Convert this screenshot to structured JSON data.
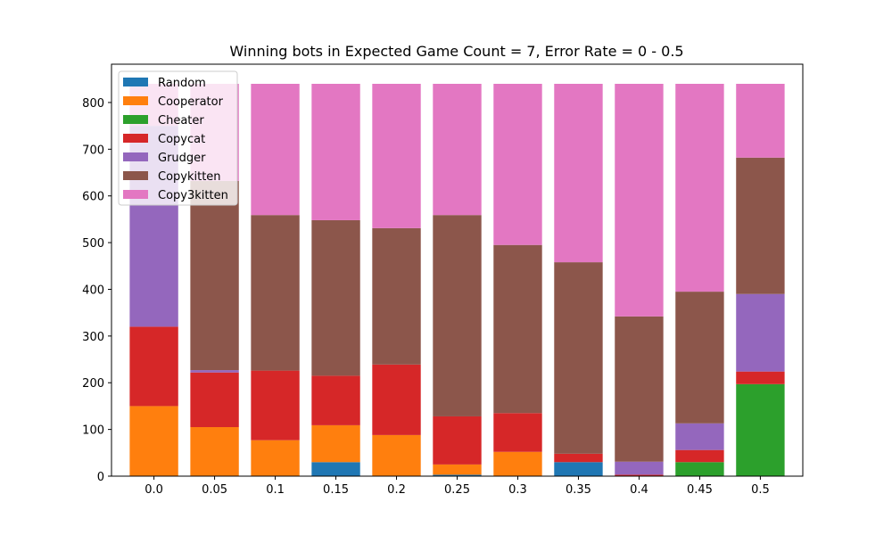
{
  "chart_data": {
    "type": "bar",
    "stacked": true,
    "title": "Winning bots in Expected Game Count = 7, Error Rate = 0 - 0.5",
    "xlabel": "",
    "ylabel": "",
    "categories": [
      "0.0",
      "0.05",
      "0.1",
      "0.15",
      "0.2",
      "0.25",
      "0.3",
      "0.35",
      "0.4",
      "0.45",
      "0.5"
    ],
    "ylim": [
      0,
      840
    ],
    "yticks": [
      0,
      100,
      200,
      300,
      400,
      500,
      600,
      700,
      800
    ],
    "grid": false,
    "legend_position": "upper-left",
    "series": [
      {
        "name": "Random",
        "color": "#1f77b4",
        "values": [
          0,
          0,
          0,
          30,
          0,
          3,
          0,
          30,
          0,
          0,
          0
        ]
      },
      {
        "name": "Cooperator",
        "color": "#ff7f0e",
        "values": [
          150,
          105,
          77,
          79,
          88,
          22,
          52,
          0,
          0,
          0,
          0
        ]
      },
      {
        "name": "Cheater",
        "color": "#2ca02c",
        "values": [
          0,
          0,
          0,
          0,
          0,
          0,
          0,
          0,
          0,
          30,
          197
        ]
      },
      {
        "name": "Copycat",
        "color": "#d62728",
        "values": [
          170,
          117,
          149,
          106,
          151,
          103,
          83,
          18,
          3,
          26,
          27
        ]
      },
      {
        "name": "Grudger",
        "color": "#9467bd",
        "values": [
          430,
          5,
          0,
          0,
          0,
          0,
          0,
          0,
          28,
          57,
          166
        ]
      },
      {
        "name": "Copykitten",
        "color": "#8c564b",
        "values": [
          0,
          405,
          333,
          333,
          292,
          431,
          360,
          410,
          311,
          282,
          292
        ]
      },
      {
        "name": "Copy3kitten",
        "color": "#e377c2",
        "values": [
          90,
          208,
          281,
          292,
          309,
          281,
          345,
          382,
          498,
          445,
          158
        ]
      }
    ]
  }
}
